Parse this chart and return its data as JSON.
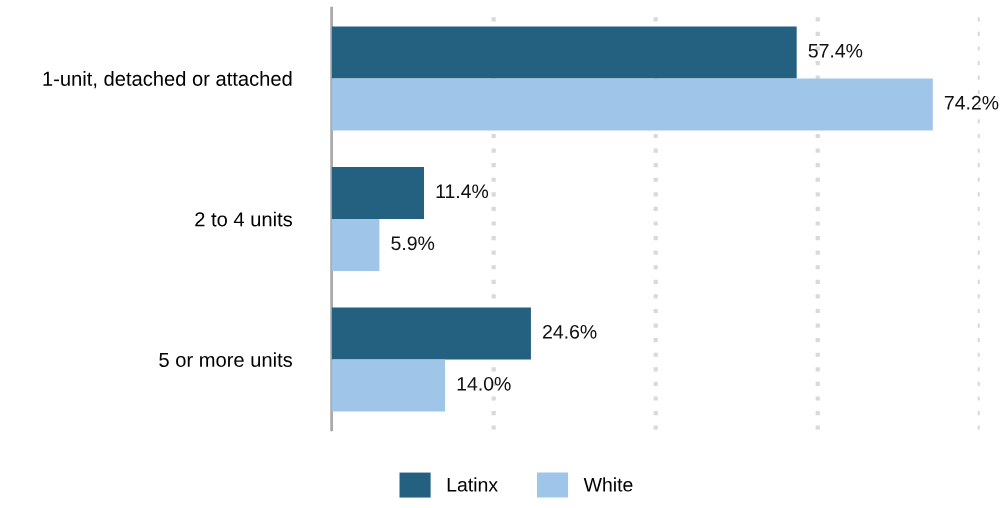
{
  "chart_data": {
    "type": "bar",
    "orientation": "horizontal",
    "categories": [
      "1-unit, detached or attached",
      "2 to 4 units",
      "5 or more units"
    ],
    "series": [
      {
        "name": "Latinx",
        "color": "#24607f",
        "values": [
          57.4,
          11.4,
          24.6
        ],
        "value_labels": [
          "57.4%",
          "11.4%",
          "24.6%"
        ]
      },
      {
        "name": "White",
        "color": "#9fc5e8",
        "values": [
          74.2,
          5.9,
          14.0
        ],
        "value_labels": [
          "74.2%",
          "5.9%",
          "14.0%"
        ]
      }
    ],
    "xlim": [
      0,
      80
    ],
    "xticks": [
      {
        "value": 20,
        "label": null
      },
      {
        "value": 40,
        "label": null
      },
      {
        "value": 60,
        "label": null
      },
      {
        "value": 80,
        "label": null
      }
    ],
    "grid": "x",
    "tick_labels": "y",
    "legend": "bottom"
  }
}
